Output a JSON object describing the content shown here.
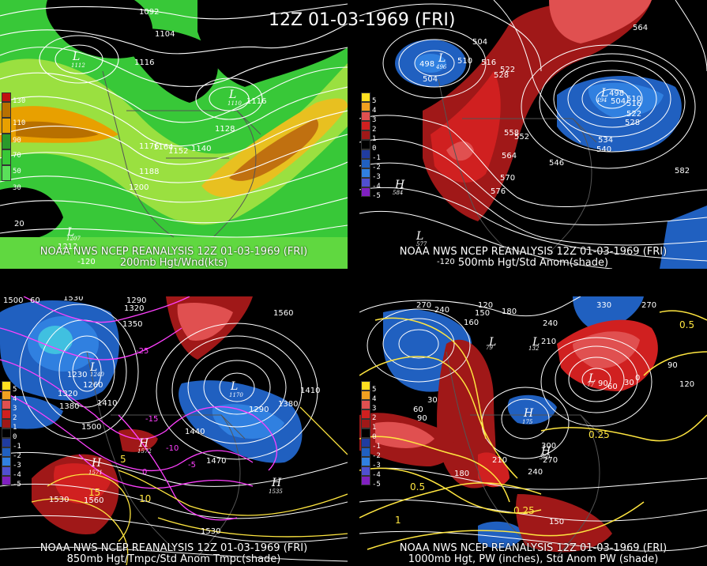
{
  "title": "12Z 01-03-1969 (FRI)",
  "panels": [
    {
      "id": "200mb",
      "footer_line1": "NOAA NWS NCEP REANALYSIS 12Z 01-03-1969 (FRI)",
      "footer_line2": "200mb Hgt/Wnd(kts)",
      "legend": [
        "130",
        "110",
        "90",
        "70",
        "50",
        "30"
      ],
      "legend_colors": [
        "#c01010",
        "#b87000",
        "#e8a000",
        "#2a9a2a",
        "#38c838",
        "#5ae05a"
      ],
      "contour_labels": [
        "1092",
        "1104",
        "1116",
        "1116",
        "1128",
        "1140",
        "1152",
        "1164",
        "1176",
        "1188",
        "1200",
        "1212"
      ],
      "lows": [
        {
          "label": "L",
          "value": "1112"
        },
        {
          "label": "L",
          "value": "1110"
        },
        {
          "label": "L",
          "value": "1207"
        }
      ],
      "coords": [
        "-120",
        "20"
      ]
    },
    {
      "id": "500mb",
      "footer_line1": "NOAA NWS NCEP REANALYSIS 12Z 01-03-1969 (FRI)",
      "footer_line2": "500mb Hgt/Std Anom(shade)",
      "legend": [
        "5",
        "4",
        "3",
        "2",
        "1",
        "0",
        "-1",
        "-2",
        "-3",
        "-4",
        "-5"
      ],
      "legend_colors": [
        "#ffe020",
        "#f0a020",
        "#e05050",
        "#d02020",
        "#a01818",
        "#000000",
        "#203ca0",
        "#2060c0",
        "#3080e0",
        "#5050d0",
        "#8020c0"
      ],
      "contour_labels": [
        "498",
        "504",
        "510",
        "516",
        "522",
        "528",
        "504",
        "564",
        "498",
        "504",
        "510",
        "516",
        "522",
        "528",
        "534",
        "540",
        "546",
        "552",
        "558",
        "564",
        "570",
        "576",
        "582"
      ],
      "lows": [
        {
          "label": "L",
          "value": "496"
        },
        {
          "label": "L",
          "value": "494"
        },
        {
          "label": "H",
          "value": "584"
        },
        {
          "label": "L",
          "value": "577"
        }
      ],
      "coords": [
        "-120"
      ]
    },
    {
      "id": "850mb",
      "footer_line1": "NOAA NWS NCEP REANALYSIS 12Z 01-03-1969 (FRI)",
      "footer_line2": "850mb Hgt/Tmpc/Std Anom Tmpc(shade)",
      "legend": [
        "5",
        "4",
        "3",
        "2",
        "1",
        "0",
        "-1",
        "-2",
        "-3",
        "-4",
        "-5"
      ],
      "legend_colors": [
        "#ffe020",
        "#f0a020",
        "#e05050",
        "#d02020",
        "#a01818",
        "#000000",
        "#203ca0",
        "#2060c0",
        "#3080e0",
        "#5050d0",
        "#8020c0"
      ],
      "contour_labels": [
        "1500",
        "1530",
        "1290",
        "1320",
        "1350",
        "1230",
        "1260",
        "1320",
        "1380",
        "1410",
        "1500",
        "1560",
        "1440",
        "1470",
        "1290",
        "1380",
        "1410",
        "1530",
        "1560",
        "1530"
      ],
      "temp_labels": [
        "-25",
        "-15",
        "-10",
        "-5",
        "0",
        "5",
        "10",
        "15"
      ],
      "lows": [
        {
          "label": "L",
          "value": "1240"
        },
        {
          "label": "L",
          "value": "1170"
        },
        {
          "label": "H",
          "value": "1572"
        },
        {
          "label": "H",
          "value": "1571"
        },
        {
          "label": "H",
          "value": "1535"
        }
      ],
      "coords": [
        "60"
      ]
    },
    {
      "id": "1000mb",
      "footer_line1": "NOAA NWS NCEP REANALYSIS 12Z 01-03-1969 (FRI)",
      "footer_line2": "1000mb Hgt, PW (inches), Std Anom PW (shade)",
      "legend": [
        "5",
        "4",
        "3",
        "2",
        "1",
        "0",
        "-1",
        "-2",
        "-3",
        "-4",
        "-5"
      ],
      "legend_colors": [
        "#ffe020",
        "#f0a020",
        "#e05050",
        "#d02020",
        "#a01818",
        "#000000",
        "#203ca0",
        "#2060c0",
        "#3080e0",
        "#5050d0",
        "#8020c0"
      ],
      "contour_labels": [
        "270",
        "240",
        "120",
        "150",
        "160",
        "180",
        "240",
        "210",
        "270",
        "330",
        "90",
        "60",
        "30",
        "0",
        "30",
        "60",
        "90",
        "120",
        "210",
        "180",
        "240",
        "270",
        "300",
        "150",
        "90"
      ],
      "pw_labels": [
        "0.5",
        "0.25",
        "0.5",
        "0.25",
        "1"
      ],
      "lows": [
        {
          "label": "L",
          "value": "77"
        },
        {
          "label": "H",
          "value": "175"
        },
        {
          "label": "L",
          "value": "132"
        },
        {
          "label": "L",
          "value": "79"
        },
        {
          "label": "H",
          "value": "300"
        }
      ],
      "coords": []
    }
  ]
}
